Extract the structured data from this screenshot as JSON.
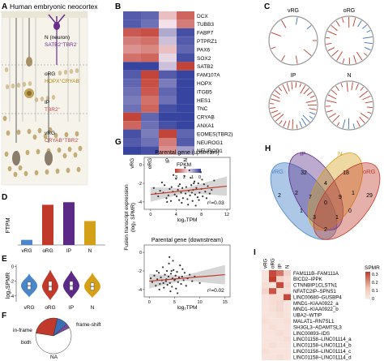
{
  "panels": {
    "A": {
      "letter": "A",
      "title": "Human embryonic neocortex",
      "labels": [
        {
          "name": "N (neuron)",
          "markers": [
            "SATB2",
            "+",
            "TBR2",
            "-"
          ],
          "color": "#6a2c8f"
        },
        {
          "name": "oRG",
          "markers": [
            "HOPX",
            "+",
            "CRYAB",
            "-"
          ],
          "color": "#b8860b"
        },
        {
          "name": "IP",
          "markers": [
            "TBR2",
            "+"
          ],
          "color": "#c44"
        },
        {
          "name": "vRG",
          "markers": [
            "CRYAB",
            "+",
            "TBR2",
            "-"
          ],
          "color": "#c44"
        }
      ]
    },
    "B": {
      "letter": "B",
      "genes": [
        "DCX",
        "TUBB3",
        "FABP7",
        "PTPRZ1",
        "PAX6",
        "SOX2",
        "SATB2",
        "FAM107A",
        "HOPX",
        "ITGB5",
        "HES1",
        "TNC",
        "CRYAB",
        "ANXA1",
        "EOMES(TBR2)",
        "NEUROG1",
        "NEUROD1"
      ],
      "columns": [
        "vRG",
        "oRG",
        "IP",
        "N"
      ],
      "values": [
        [
          0.3,
          0.4,
          1.8,
          2.6
        ],
        [
          0.3,
          0.5,
          1.5,
          2.4
        ],
        [
          2.7,
          2.8,
          1.0,
          0.2
        ],
        [
          2.4,
          2.5,
          1.2,
          0.3
        ],
        [
          2.2,
          2.3,
          1.8,
          0.4
        ],
        [
          2.5,
          2.6,
          1.4,
          0.2
        ],
        [
          0.1,
          0.1,
          1.2,
          2.9
        ],
        [
          0.3,
          2.9,
          0.3,
          0.1
        ],
        [
          0.4,
          2.8,
          0.6,
          0.1
        ],
        [
          0.5,
          2.7,
          0.4,
          0.1
        ],
        [
          0.6,
          2.5,
          0.5,
          0.1
        ],
        [
          0.5,
          2.6,
          0.2,
          0.1
        ],
        [
          2.9,
          0.4,
          0.1,
          0.1
        ],
        [
          2.6,
          0.5,
          0.2,
          0.1
        ],
        [
          0.2,
          0.6,
          2.9,
          0.4
        ],
        [
          0.3,
          0.5,
          2.4,
          0.3
        ],
        [
          0.1,
          0.2,
          2.2,
          0.9
        ]
      ],
      "legend_title": "FPKM",
      "legend_ticks": [
        "3",
        "2",
        "1",
        "0"
      ]
    },
    "C": {
      "letter": "C",
      "circles": [
        {
          "label": "vRG",
          "reds": 7,
          "blues": 2
        },
        {
          "label": "oRG",
          "reds": 16,
          "blues": 6
        },
        {
          "label": "IP",
          "reds": 26,
          "blues": 5
        },
        {
          "label": "N",
          "reds": 22,
          "blues": 3
        }
      ]
    },
    "D": {
      "letter": "D",
      "chart_data": {
        "type": "bar",
        "categories": [
          "vRG",
          "oRG",
          "IP",
          "N"
        ],
        "values": [
          0.06,
          0.47,
          0.5,
          0.28
        ],
        "ylabel": "FTPM",
        "colors": [
          "#4a86c8",
          "#c0392b",
          "#5b2a86",
          "#d4a017"
        ]
      }
    },
    "E": {
      "letter": "E",
      "chart_data": {
        "type": "violin",
        "categories": [
          "vRG",
          "oRG",
          "IP",
          "N"
        ],
        "medians": [
          -2.6,
          -2.7,
          -2.6,
          -2.7
        ],
        "q1": [
          -3.1,
          -3.3,
          -3.2,
          -3.2
        ],
        "q3": [
          -2.1,
          -2.0,
          -2.0,
          -2.2
        ],
        "min": [
          -4.2,
          -4.6,
          -4.4,
          -4.3
        ],
        "max": [
          -0.9,
          -0.4,
          -0.5,
          -0.8
        ],
        "ylabel": "log₂SPMR",
        "yticks": [
          0,
          -2,
          -4
        ],
        "ylim": [
          -4.8,
          0.3
        ],
        "colors": [
          "#4a86c8",
          "#c0392b",
          "#5b2a86",
          "#d4a017"
        ]
      }
    },
    "F": {
      "letter": "F",
      "chart_data": {
        "type": "pie",
        "labels": [
          "frame-shift",
          "in-frame",
          "both",
          "NA"
        ],
        "values": [
          26,
          10,
          4,
          60
        ],
        "colors": [
          "#c0392b",
          "#3a6fb5",
          "#7b4aa0",
          "#ffffff"
        ]
      }
    },
    "G": {
      "letter": "G",
      "plots": [
        {
          "title": "Parental gene (upstream)",
          "r2": "r²=0.03",
          "xticks": [
            0,
            4,
            8,
            12
          ],
          "yticks": [
            0,
            -2,
            -4
          ],
          "xlabel": "log₂TPM",
          "points": [
            [
              0.5,
              -2.5
            ],
            [
              0.8,
              -3.1
            ],
            [
              1.2,
              -3.4
            ],
            [
              1.5,
              -2.8
            ],
            [
              2.0,
              -3.0
            ],
            [
              2.2,
              -2.2
            ],
            [
              2.5,
              -3.6
            ],
            [
              2.8,
              -3.3
            ],
            [
              3.0,
              -2.6
            ],
            [
              3.2,
              -3.9
            ],
            [
              3.5,
              -2.9
            ],
            [
              3.8,
              -3.2
            ],
            [
              4.0,
              -1.5
            ],
            [
              4.1,
              -3.4
            ],
            [
              4.3,
              -2.7
            ],
            [
              4.5,
              -3.8
            ],
            [
              4.6,
              -2.1
            ],
            [
              4.8,
              -3.0
            ],
            [
              5.0,
              -2.5
            ],
            [
              5.1,
              -3.6
            ],
            [
              5.3,
              -1.2
            ],
            [
              5.5,
              -3.1
            ],
            [
              5.6,
              -2.4
            ],
            [
              5.8,
              -3.7
            ],
            [
              6.0,
              -2.8
            ],
            [
              6.1,
              -0.6
            ],
            [
              6.2,
              -3.3
            ],
            [
              6.4,
              -2.2
            ],
            [
              6.6,
              -3.9
            ],
            [
              6.7,
              -2.7
            ],
            [
              6.9,
              -1.8
            ],
            [
              7.0,
              -3.2
            ],
            [
              7.2,
              -2.5
            ],
            [
              7.4,
              -3.5
            ],
            [
              7.5,
              -2.0
            ],
            [
              7.7,
              -3.0
            ],
            [
              7.9,
              -0.8
            ],
            [
              8.0,
              -2.6
            ],
            [
              8.2,
              -3.4
            ],
            [
              8.4,
              -2.1
            ],
            [
              8.6,
              -2.9
            ],
            [
              8.8,
              -3.6
            ],
            [
              9.0,
              -2.3
            ],
            [
              9.3,
              -3.1
            ],
            [
              9.6,
              -2.7
            ],
            [
              10.0,
              -1.7
            ],
            [
              1.8,
              -1.9
            ],
            [
              3.6,
              -1.1
            ],
            [
              5.9,
              -4.3
            ],
            [
              4.9,
              -4.1
            ],
            [
              6.3,
              -1.4
            ],
            [
              7.1,
              -4.4
            ],
            [
              2.6,
              -4.0
            ],
            [
              8.1,
              -1.6
            ],
            [
              5.4,
              -0.3
            ],
            [
              6.8,
              -2.0
            ],
            [
              4.4,
              -2.3
            ],
            [
              3.3,
              -2.4
            ],
            [
              7.6,
              -3.8
            ],
            [
              6.5,
              -3.0
            ]
          ],
          "fit": [
            [
              0,
              -3.2
            ],
            [
              12,
              -2.3
            ]
          ],
          "xlim": [
            -1,
            12.5
          ],
          "ylim": [
            -4.8,
            0.8
          ]
        },
        {
          "title": "Parental gene (downstream)",
          "r2": "r²=0.02",
          "xticks": [
            0,
            5,
            10,
            15
          ],
          "yticks": [
            0,
            -2,
            -4
          ],
          "xlabel": "log₂TPM",
          "points": [
            [
              0.3,
              -2.8
            ],
            [
              0.6,
              -3.2
            ],
            [
              1.0,
              -2.5
            ],
            [
              1.3,
              -3.6
            ],
            [
              1.6,
              -2.9
            ],
            [
              1.9,
              -2.2
            ],
            [
              2.1,
              -3.4
            ],
            [
              2.3,
              -2.7
            ],
            [
              2.5,
              -3.0
            ],
            [
              2.7,
              -1.6
            ],
            [
              2.9,
              -3.8
            ],
            [
              3.1,
              -2.4
            ],
            [
              3.3,
              -3.1
            ],
            [
              3.5,
              -2.0
            ],
            [
              3.6,
              -3.5
            ],
            [
              3.8,
              -2.6
            ],
            [
              4.0,
              -0.5
            ],
            [
              4.1,
              -3.3
            ],
            [
              4.3,
              -2.3
            ],
            [
              4.5,
              -3.7
            ],
            [
              4.6,
              -2.8
            ],
            [
              4.8,
              -1.9
            ],
            [
              5.0,
              -3.0
            ],
            [
              5.2,
              -2.5
            ],
            [
              5.3,
              -3.9
            ],
            [
              5.5,
              -2.1
            ],
            [
              5.7,
              -3.2
            ],
            [
              5.9,
              -2.7
            ],
            [
              6.1,
              -1.4
            ],
            [
              6.3,
              -3.4
            ],
            [
              6.5,
              -2.6
            ],
            [
              6.8,
              -3.0
            ],
            [
              7.0,
              -2.2
            ],
            [
              7.3,
              -3.6
            ],
            [
              7.6,
              -2.8
            ],
            [
              8.0,
              -2.4
            ],
            [
              8.5,
              -3.1
            ],
            [
              9.0,
              -2.6
            ],
            [
              10.0,
              -3.3
            ],
            [
              4.2,
              -4.2
            ],
            [
              3.9,
              -1.2
            ],
            [
              2.0,
              -4.0
            ],
            [
              5.6,
              -4.4
            ],
            [
              4.7,
              -0.9
            ],
            [
              3.4,
              -2.9
            ],
            [
              6.6,
              -1.8
            ],
            [
              1.5,
              -2.0
            ],
            [
              2.8,
              -3.3
            ],
            [
              5.1,
              -2.9
            ],
            [
              4.4,
              -2.0
            ]
          ],
          "fit": [
            [
              0,
              -3.1
            ],
            [
              15,
              -2.4
            ]
          ],
          "xlim": [
            -1,
            16
          ],
          "ylim": [
            -4.8,
            0.8
          ]
        }
      ],
      "ylabel_main": "Fusion transcript expression",
      "ylabel_sub": "(log₂ SPMR)"
    },
    "H": {
      "letter": "H",
      "sets": [
        {
          "label": "vRG",
          "color": "#4a86c8"
        },
        {
          "label": "IP",
          "color": "#5b2a86"
        },
        {
          "label": "N",
          "color": "#d4a017"
        },
        {
          "label": "oRG",
          "color": "#c0392b"
        }
      ],
      "numbers": [
        "2",
        "32",
        "18",
        "29",
        "4",
        "2",
        "1",
        "7",
        "9",
        "0",
        "1",
        "0",
        "3",
        "1",
        "2"
      ]
    },
    "I": {
      "letter": "I",
      "columns": [
        "vRG",
        "oRG",
        "IP",
        "N"
      ],
      "rows": [
        "FAM111B–FAM111A",
        "BICD2–IPPK",
        "CTNNBIP1CLSTN1",
        "NFATC2IP–SPNS1",
        "LINC00680–GUSBP4",
        "MND1–KIAA0922_a",
        "MND1–KIAA0922_b",
        "UBA2–WTIP",
        "MALAT1–RN7SL1",
        "SH3GL3–ADAMTSL3",
        "LINC00893–IDS",
        "LINC01158–LINC01114_a",
        "LINC01158–LINC01114_b",
        "LINC01158–LINC01114_c",
        "LINC01158–LINC01114_d"
      ],
      "values": [
        [
          0.02,
          0.3,
          0.22,
          0.05
        ],
        [
          0.02,
          0.32,
          0.05,
          0.03
        ],
        [
          0.03,
          0.02,
          0.3,
          0.04
        ],
        [
          0.05,
          0.28,
          0.03,
          0.03
        ],
        [
          0.02,
          0.03,
          0.03,
          0.3
        ],
        [
          0.02,
          0.03,
          0.04,
          0.02
        ],
        [
          0.02,
          0.03,
          0.04,
          0.02
        ],
        [
          0.02,
          0.02,
          0.03,
          0.02
        ],
        [
          0.03,
          0.02,
          0.02,
          0.03
        ],
        [
          0.02,
          0.03,
          0.02,
          0.02
        ],
        [
          0.02,
          0.02,
          0.03,
          0.02
        ],
        [
          0.02,
          0.02,
          0.02,
          0.03
        ],
        [
          0.02,
          0.03,
          0.02,
          0.02
        ],
        [
          0.03,
          0.02,
          0.02,
          0.02
        ],
        [
          0.02,
          0.02,
          0.03,
          0.02
        ]
      ],
      "legend_title": "SPMR",
      "legend_ticks": [
        "0.3",
        "0.2",
        "0.1",
        "0"
      ]
    }
  }
}
